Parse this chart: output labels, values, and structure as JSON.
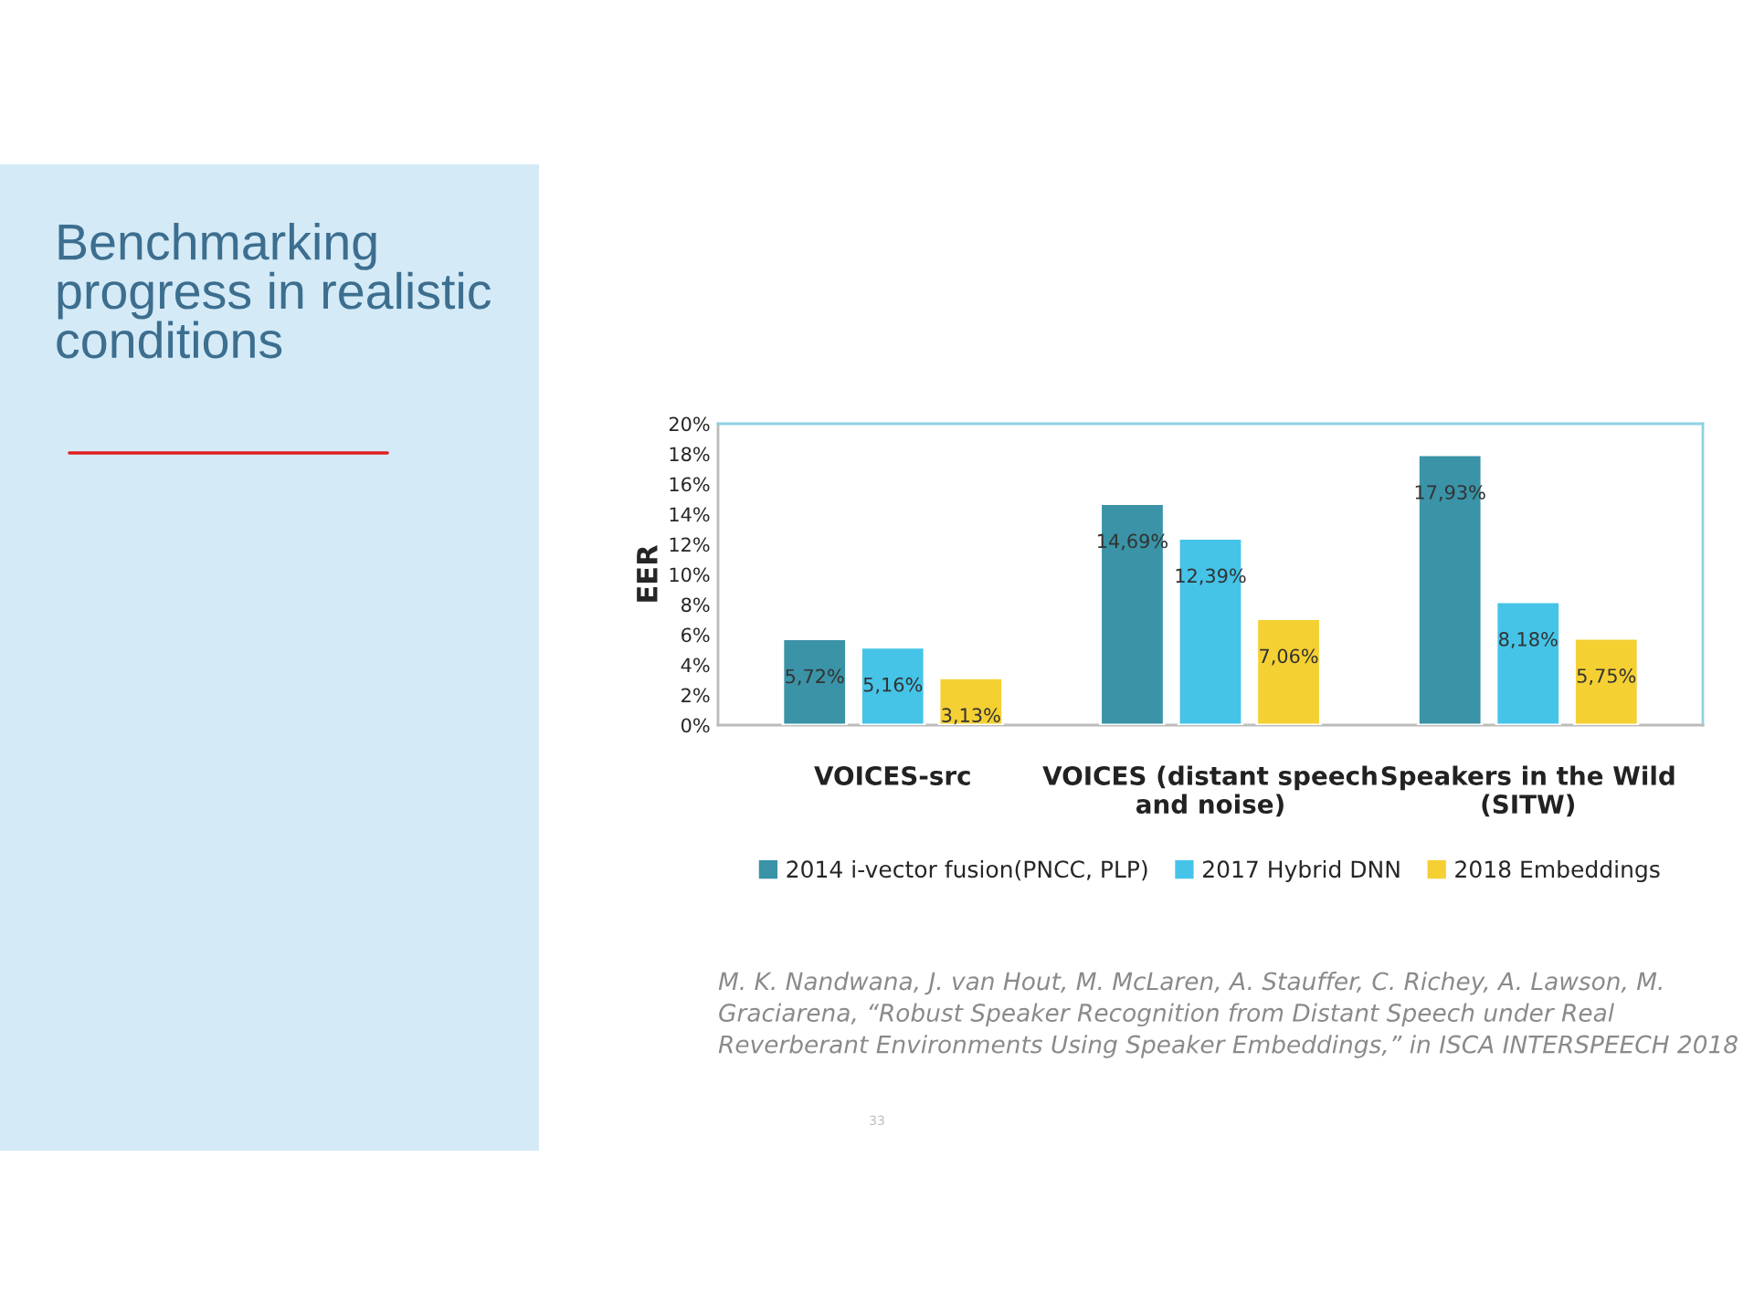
{
  "chart_data": {
    "type": "bar",
    "title": "Benchmarking\nprogress in realistic\nconditions",
    "ylabel": "EER",
    "categories": [
      "VOICES-src",
      "VOICES (distant speech\nand noise)",
      "Speakers in the Wild\n(SITW)"
    ],
    "series": [
      {
        "name": "2014 i-vector fusion(PNCC, PLP)",
        "color": "#3a93a6",
        "values": [
          5.72,
          14.69,
          17.93
        ],
        "value_labels": [
          "5,72%",
          "14,69%",
          "17,93%"
        ]
      },
      {
        "name": "2017 Hybrid DNN",
        "color": "#45c4e8",
        "values": [
          5.16,
          12.39,
          8.18
        ],
        "value_labels": [
          "5,16%",
          "12,39%",
          "8,18%"
        ]
      },
      {
        "name": "2018 Embeddings",
        "color": "#f5d033",
        "values": [
          3.13,
          7.06,
          5.75
        ],
        "value_labels": [
          "3,13%",
          "7,06%",
          "5,75%"
        ]
      }
    ],
    "ylim": [
      0,
      20
    ],
    "yticks": [
      {
        "value": 0,
        "label": "0%"
      },
      {
        "value": 2,
        "label": "2%"
      },
      {
        "value": 4,
        "label": "4%"
      },
      {
        "value": 6,
        "label": "6%"
      },
      {
        "value": 8,
        "label": "8%"
      },
      {
        "value": 10,
        "label": "10%"
      },
      {
        "value": 12,
        "label": "12%"
      },
      {
        "value": 14,
        "label": "14%"
      },
      {
        "value": 16,
        "label": "16%"
      },
      {
        "value": 18,
        "label": "18%"
      },
      {
        "value": 20,
        "label": "20%"
      }
    ],
    "grid": false,
    "legend": "bottom",
    "annotations": [
      "M. K. Nandwana, J. van Hout, M. McLaren, A. Stauffer, C. Richey, A. Lawson, M. Graciarena, “Robust Speaker Recognition from Distant Speech under Real Reverberant Environments Using Speaker Embeddings,” in ISCA INTERSPEECH 2018",
      "33"
    ]
  }
}
